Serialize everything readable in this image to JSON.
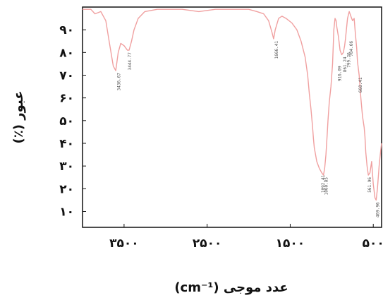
{
  "chart_data": {
    "type": "line",
    "xlabel": "عدد موجی (cm⁻¹)",
    "ylabel": "عبور (٪)",
    "x_reversed": true,
    "xlim": [
      4000,
      400
    ],
    "ylim": [
      3,
      100
    ],
    "grid": false,
    "x_ticks": [
      {
        "value": 3500,
        "label": "۳۵۰۰"
      },
      {
        "value": 2500,
        "label": "۲۵۰۰"
      },
      {
        "value": 1500,
        "label": "۱۵۰۰"
      },
      {
        "value": 500,
        "label": "۵۰۰"
      }
    ],
    "y_ticks": [
      {
        "value": 10,
        "label": "۱۰"
      },
      {
        "value": 20,
        "label": "۲۰"
      },
      {
        "value": 30,
        "label": "۳۰"
      },
      {
        "value": 40,
        "label": "۴۰"
      },
      {
        "value": 50,
        "label": "۵۰"
      },
      {
        "value": 60,
        "label": "۶۰"
      },
      {
        "value": 70,
        "label": "۷۰"
      },
      {
        "value": 80,
        "label": "۸۰"
      },
      {
        "value": 90,
        "label": "۹۰"
      }
    ],
    "series": [
      {
        "color": "#f0a0a0",
        "x": [
          4000,
          3900,
          3850,
          3780,
          3720,
          3680,
          3630,
          3600,
          3570,
          3540,
          3500,
          3460,
          3440,
          3410,
          3380,
          3330,
          3250,
          3100,
          2950,
          2800,
          2600,
          2400,
          2200,
          2000,
          1900,
          1820,
          1760,
          1720,
          1700,
          1680,
          1640,
          1600,
          1550,
          1480,
          1420,
          1370,
          1320,
          1290,
          1270,
          1250,
          1230,
          1220,
          1210,
          1195,
          1180,
          1150,
          1120,
          1100,
          1085,
          1070,
          1055,
          1045,
          1030,
          1010,
          990,
          975,
          960,
          948,
          938,
          920,
          900,
          880,
          860,
          845,
          835,
          810,
          790,
          770,
          750,
          730,
          715,
          700,
          690,
          670,
          650,
          630,
          610,
          600,
          590,
          575,
          560,
          540,
          520,
          500,
          480,
          465,
          450,
          430,
          410,
          400
        ],
        "y": [
          99,
          99,
          97,
          98,
          94,
          85,
          74,
          72,
          80,
          84,
          83,
          81,
          81,
          85,
          90,
          95,
          98,
          99,
          99,
          99,
          98,
          99,
          99,
          99,
          98,
          97,
          94,
          89,
          86,
          90,
          95,
          96,
          95,
          93,
          90,
          85,
          78,
          70,
          62,
          55,
          47,
          42,
          38,
          35,
          32,
          29,
          27,
          26,
          29,
          35,
          44,
          50,
          58,
          65,
          75,
          90,
          95,
          94,
          91,
          87,
          81,
          79,
          80,
          83,
          86,
          95,
          98,
          96,
          94,
          95,
          88,
          82,
          76,
          70,
          60,
          52,
          47,
          43,
          36,
          30,
          26,
          27,
          32,
          22,
          16,
          15,
          20,
          30,
          37,
          40
        ]
      }
    ],
    "annotations": [
      {
        "label": "3436.67",
        "x": 3580,
        "y": 72
      },
      {
        "label": "3444.77",
        "x": 3450,
        "y": 81
      },
      {
        "label": "1666.41",
        "x": 1680,
        "y": 86
      },
      {
        "label": "1092.41",
        "x": 1120,
        "y": 27
      },
      {
        "label": "1060.85",
        "x": 1085,
        "y": 26
      },
      {
        "label": "916.09",
        "x": 920,
        "y": 75
      },
      {
        "label": "861.24",
        "x": 860,
        "y": 79
      },
      {
        "label": "799.26",
        "x": 810,
        "y": 81
      },
      {
        "label": "784.66",
        "x": 780,
        "y": 86
      },
      {
        "label": "668.41",
        "x": 670,
        "y": 70
      },
      {
        "label": "561.96",
        "x": 560,
        "y": 26
      },
      {
        "label": "469.96",
        "x": 465,
        "y": 15
      }
    ]
  }
}
